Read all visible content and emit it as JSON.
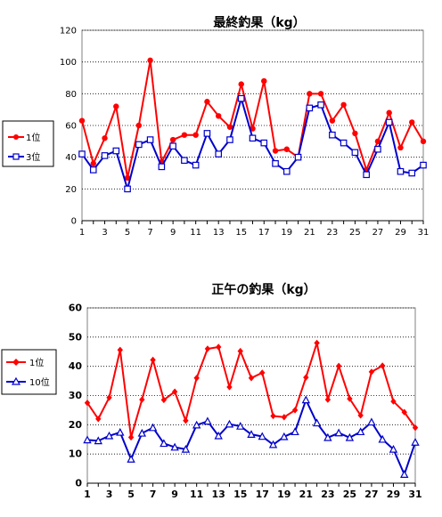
{
  "chart_data": [
    {
      "type": "line",
      "title": "最終釣果（kg）",
      "xlabel": "",
      "ylabel": "",
      "ylim": [
        0,
        120
      ],
      "yticks": [
        0,
        20,
        40,
        60,
        80,
        100,
        120
      ],
      "xticks": [
        1,
        3,
        5,
        7,
        9,
        11,
        13,
        15,
        17,
        19,
        21,
        23,
        25,
        27,
        29,
        31
      ],
      "x": [
        1,
        2,
        3,
        4,
        5,
        6,
        7,
        8,
        9,
        10,
        11,
        12,
        13,
        14,
        15,
        16,
        17,
        18,
        19,
        20,
        21,
        22,
        23,
        24,
        25,
        26,
        27,
        28,
        29,
        30,
        31
      ],
      "grid": "horizontal",
      "legend": "left",
      "series": [
        {
          "name": "1位",
          "color": "#ff0000",
          "marker": "dot",
          "values": [
            63,
            36,
            52,
            72,
            27,
            60,
            101,
            37,
            51,
            54,
            54,
            75,
            66,
            59,
            86,
            58,
            88,
            44,
            45,
            40,
            80,
            80,
            63,
            73,
            55,
            32,
            50,
            68,
            46,
            62,
            50
          ]
        },
        {
          "name": "3位",
          "color": "#0000cc",
          "marker": "square",
          "values": [
            42,
            32,
            41,
            44,
            20,
            48,
            51,
            34,
            47,
            38,
            35,
            55,
            42,
            51,
            77,
            52,
            49,
            36,
            31,
            40,
            71,
            73,
            54,
            49,
            43,
            29,
            45,
            62,
            31,
            30,
            35
          ]
        }
      ]
    },
    {
      "type": "line",
      "title": "正午の釣果（kg）",
      "xlabel": "",
      "ylabel": "",
      "ylim": [
        0,
        60
      ],
      "yticks": [
        0,
        10,
        20,
        30,
        40,
        50,
        60
      ],
      "xticks": [
        1,
        3,
        5,
        7,
        9,
        11,
        13,
        15,
        17,
        19,
        21,
        23,
        25,
        27,
        29,
        31
      ],
      "x": [
        1,
        2,
        3,
        4,
        5,
        6,
        7,
        8,
        9,
        10,
        11,
        12,
        13,
        14,
        15,
        16,
        17,
        18,
        19,
        20,
        21,
        22,
        23,
        24,
        25,
        26,
        27,
        28,
        29,
        30,
        31
      ],
      "grid": "horizontal",
      "legend": "left",
      "series": [
        {
          "name": "1位",
          "color": "#ff0000",
          "marker": "diamond",
          "values": [
            27.5,
            22,
            29.3,
            45.6,
            15.7,
            28.6,
            42.2,
            28.5,
            31.3,
            21.4,
            36,
            46,
            46.6,
            32.9,
            45.2,
            36,
            37.8,
            23,
            22.6,
            25,
            36.2,
            48,
            28.6,
            40.1,
            28.9,
            23.2,
            38.1,
            40.2,
            28,
            24.3,
            19
          ]
        },
        {
          "name": "10位",
          "color": "#0000cc",
          "marker": "triangle",
          "values": [
            14.8,
            14.5,
            16.2,
            17.4,
            8.2,
            17.1,
            19,
            13.6,
            12.3,
            11.6,
            19.9,
            21.2,
            16.2,
            20.2,
            19.5,
            16.7,
            16,
            13.2,
            15.9,
            17.6,
            28.5,
            20.6,
            15.6,
            17.2,
            15.6,
            17.6,
            20.9,
            15,
            11.6,
            3,
            14
          ]
        }
      ]
    }
  ]
}
